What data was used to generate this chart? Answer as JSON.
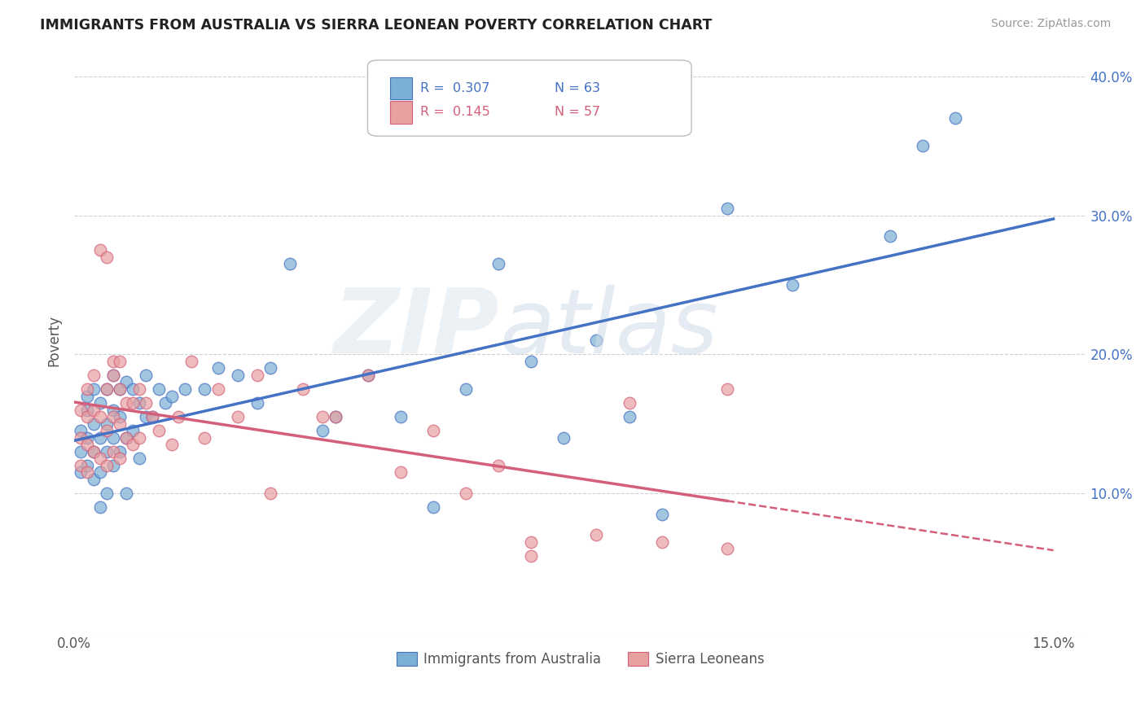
{
  "title": "IMMIGRANTS FROM AUSTRALIA VS SIERRA LEONEAN POVERTY CORRELATION CHART",
  "source": "Source: ZipAtlas.com",
  "ylabel": "Poverty",
  "color_blue": "#7bafd4",
  "color_pink": "#e8a0a0",
  "color_blue_line": "#4472c4",
  "color_pink_line": "#d45f7a",
  "color_blue_label": "#4472c4",
  "legend_r1": "R =  0.307",
  "legend_n1": "N = 63",
  "legend_r2": "R =  0.145",
  "legend_n2": "N = 57",
  "blue_points_x": [
    0.001,
    0.001,
    0.001,
    0.002,
    0.002,
    0.002,
    0.002,
    0.003,
    0.003,
    0.003,
    0.003,
    0.004,
    0.004,
    0.004,
    0.004,
    0.005,
    0.005,
    0.005,
    0.005,
    0.006,
    0.006,
    0.006,
    0.006,
    0.007,
    0.007,
    0.007,
    0.008,
    0.008,
    0.008,
    0.009,
    0.009,
    0.01,
    0.01,
    0.011,
    0.011,
    0.012,
    0.013,
    0.014,
    0.015,
    0.017,
    0.02,
    0.022,
    0.025,
    0.028,
    0.03,
    0.033,
    0.038,
    0.04,
    0.045,
    0.05,
    0.055,
    0.06,
    0.065,
    0.07,
    0.075,
    0.08,
    0.085,
    0.09,
    0.1,
    0.11,
    0.125,
    0.13,
    0.135
  ],
  "blue_points_y": [
    0.115,
    0.13,
    0.145,
    0.12,
    0.14,
    0.16,
    0.17,
    0.11,
    0.13,
    0.15,
    0.175,
    0.09,
    0.115,
    0.14,
    0.165,
    0.1,
    0.13,
    0.15,
    0.175,
    0.12,
    0.14,
    0.16,
    0.185,
    0.13,
    0.155,
    0.175,
    0.1,
    0.14,
    0.18,
    0.145,
    0.175,
    0.125,
    0.165,
    0.155,
    0.185,
    0.155,
    0.175,
    0.165,
    0.17,
    0.175,
    0.175,
    0.19,
    0.185,
    0.165,
    0.19,
    0.265,
    0.145,
    0.155,
    0.185,
    0.155,
    0.09,
    0.175,
    0.265,
    0.195,
    0.14,
    0.21,
    0.155,
    0.085,
    0.305,
    0.25,
    0.285,
    0.35,
    0.37
  ],
  "pink_points_x": [
    0.001,
    0.001,
    0.001,
    0.002,
    0.002,
    0.002,
    0.002,
    0.003,
    0.003,
    0.003,
    0.004,
    0.004,
    0.004,
    0.005,
    0.005,
    0.005,
    0.005,
    0.006,
    0.006,
    0.006,
    0.006,
    0.007,
    0.007,
    0.007,
    0.007,
    0.008,
    0.008,
    0.009,
    0.009,
    0.01,
    0.01,
    0.011,
    0.012,
    0.013,
    0.015,
    0.016,
    0.018,
    0.02,
    0.022,
    0.025,
    0.028,
    0.03,
    0.035,
    0.038,
    0.04,
    0.045,
    0.05,
    0.055,
    0.06,
    0.065,
    0.07,
    0.07,
    0.08,
    0.085,
    0.09,
    0.1,
    0.1
  ],
  "pink_points_y": [
    0.12,
    0.14,
    0.16,
    0.115,
    0.135,
    0.155,
    0.175,
    0.13,
    0.16,
    0.185,
    0.125,
    0.155,
    0.275,
    0.12,
    0.145,
    0.175,
    0.27,
    0.13,
    0.155,
    0.185,
    0.195,
    0.125,
    0.15,
    0.175,
    0.195,
    0.14,
    0.165,
    0.135,
    0.165,
    0.14,
    0.175,
    0.165,
    0.155,
    0.145,
    0.135,
    0.155,
    0.195,
    0.14,
    0.175,
    0.155,
    0.185,
    0.1,
    0.175,
    0.155,
    0.155,
    0.185,
    0.115,
    0.145,
    0.1,
    0.12,
    0.065,
    0.055,
    0.07,
    0.165,
    0.065,
    0.06,
    0.175
  ]
}
